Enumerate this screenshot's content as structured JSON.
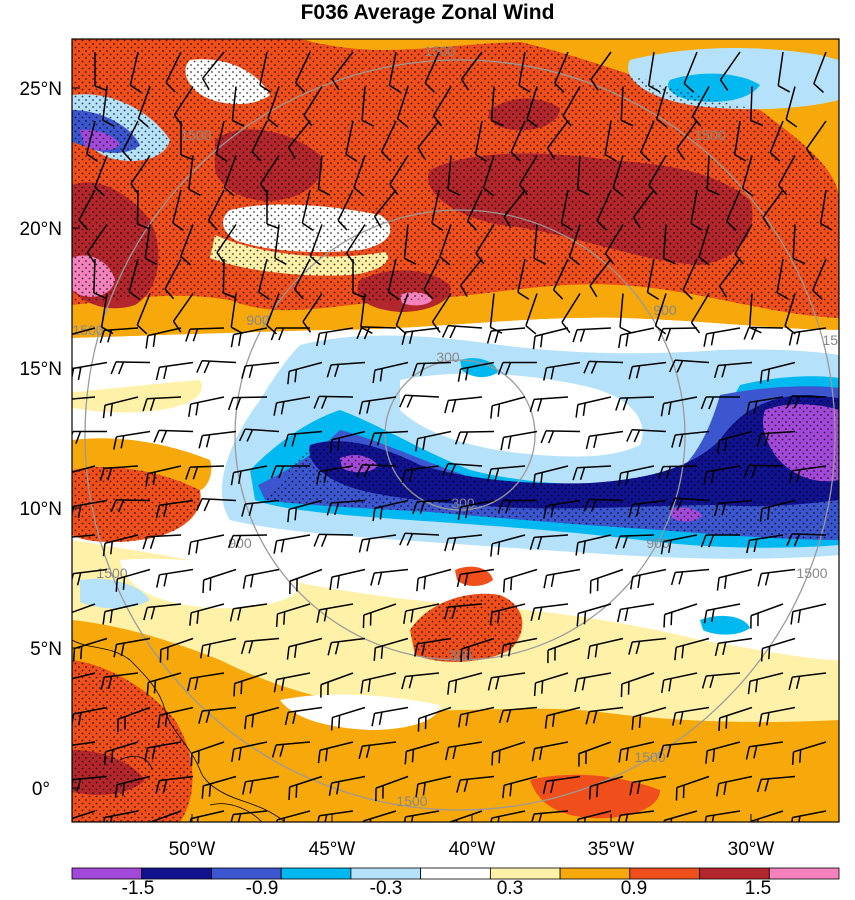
{
  "title": "F036 Average Zonal Wind",
  "lat_labels": [
    "25°N",
    "20°N",
    "15°N",
    "10°N",
    "5°N",
    "0°"
  ],
  "lon_labels": [
    "50°W",
    "45°W",
    "40°W",
    "35°W",
    "30°W"
  ],
  "colorbar": {
    "labels": [
      "-1.5",
      "-0.9",
      "-0.3",
      "0.3",
      "0.9",
      "1.5"
    ],
    "colors": [
      "#a349d9",
      "#10128f",
      "#3b56cf",
      "#00b8f0",
      "#b5e2fa",
      "#ffffff",
      "#fff1a8",
      "#f7a80a",
      "#f04f1b",
      "#b3262b",
      "#f582bd"
    ]
  },
  "range_rings": {
    "labels": [
      "300",
      "900",
      "1500"
    ]
  },
  "palette": {
    "purple": "#a349d9",
    "navy": "#10128f",
    "blue": "#3b56cf",
    "cyan": "#00b8f0",
    "lightblue": "#b5e2fa",
    "white": "#ffffff",
    "yellow": "#fff1a8",
    "orange": "#f7a80a",
    "red": "#f04f1b",
    "darkred": "#b3262b",
    "pink": "#f582bd",
    "ring": "#9a9a9a"
  }
}
